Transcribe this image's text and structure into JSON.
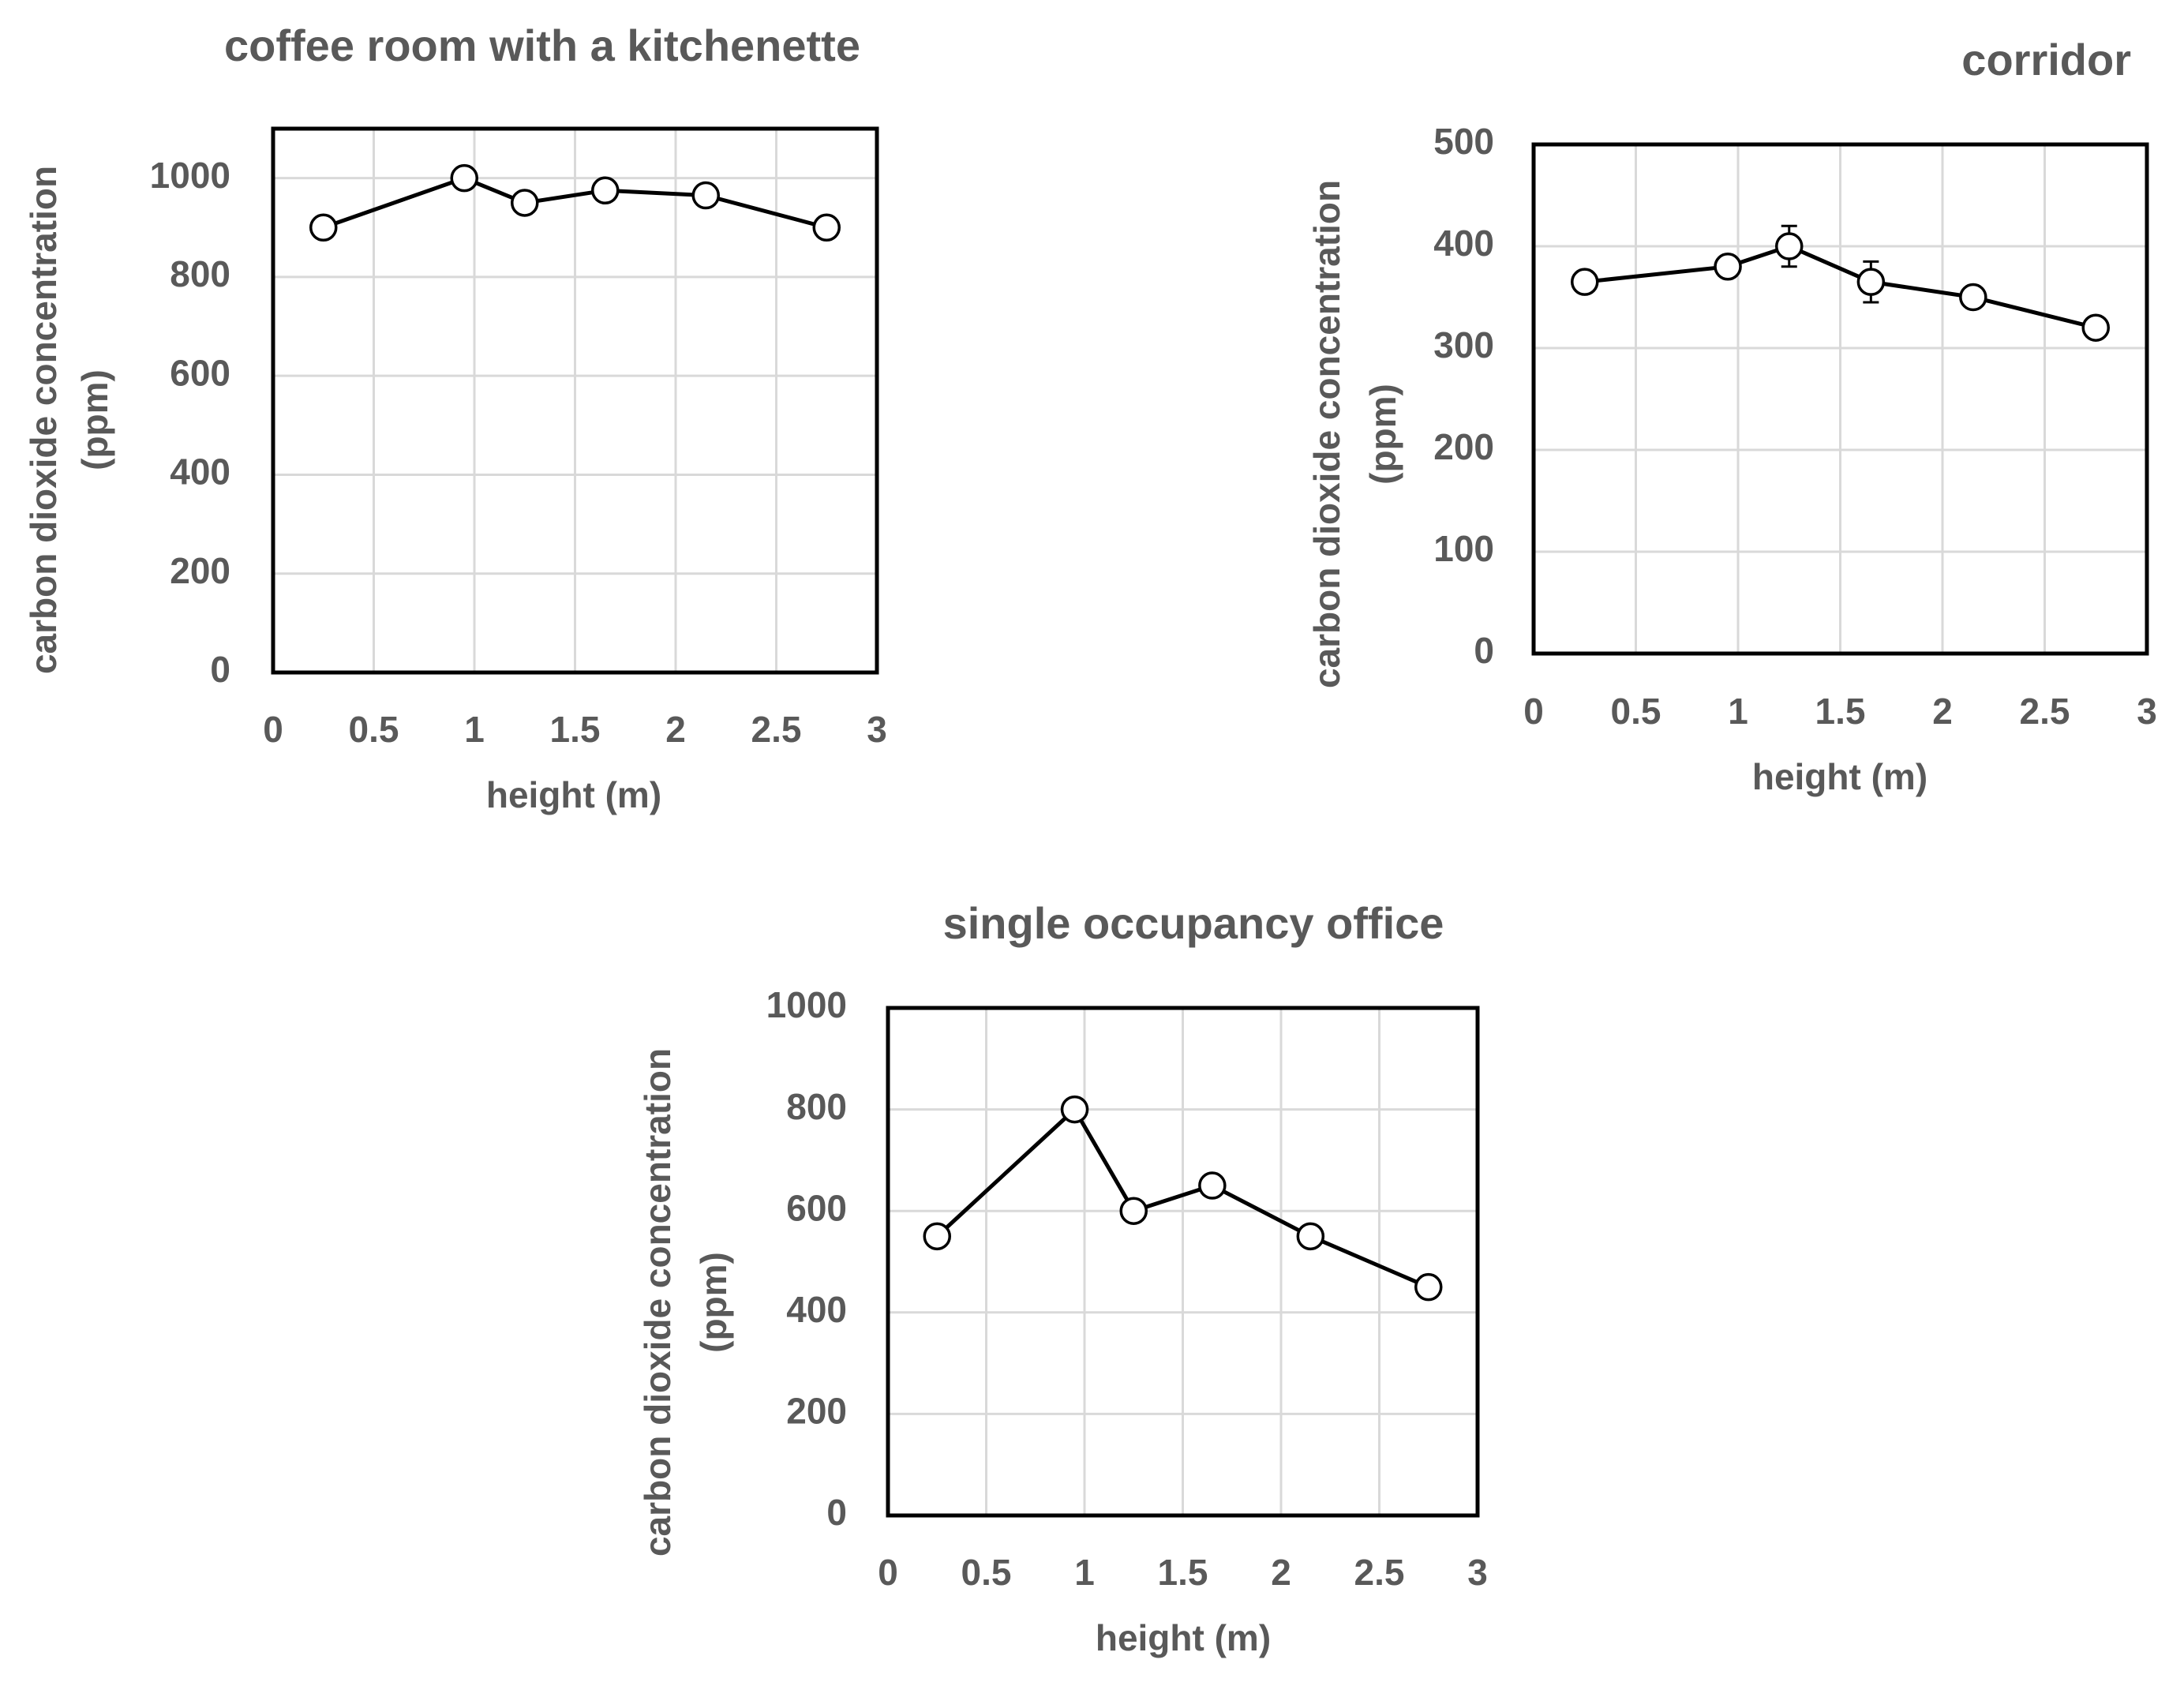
{
  "chart_data": [
    {
      "type": "line",
      "title": "coffee room with a kitchenette",
      "x_label": "height (m)",
      "y_label": [
        "carbon dioxide concentration",
        "(ppm)"
      ],
      "x": [
        0.25,
        0.95,
        1.25,
        1.65,
        2.15,
        2.75
      ],
      "values": [
        900,
        1000,
        950,
        975,
        965,
        900
      ],
      "xlim": [
        0,
        3
      ],
      "ylim": [
        0,
        1100
      ],
      "xticks": [
        0,
        0.5,
        1,
        1.5,
        2,
        2.5,
        3
      ],
      "yticks": [
        0,
        200,
        400,
        600,
        800,
        1000
      ],
      "grid": true,
      "color": "#000000",
      "marker_fill": "#ffffff"
    },
    {
      "type": "line",
      "title": "corridor",
      "x_label": "height (m)",
      "y_label": [
        "carbon dioxide concentration",
        "(ppm)"
      ],
      "x": [
        0.25,
        0.95,
        1.25,
        1.65,
        2.15,
        2.75
      ],
      "values": [
        365,
        380,
        400,
        365,
        350,
        320
      ],
      "errors": [
        null,
        null,
        20,
        20,
        null,
        null
      ],
      "xlim": [
        0,
        3
      ],
      "ylim": [
        0,
        500
      ],
      "xticks": [
        0,
        0.5,
        1,
        1.5,
        2,
        2.5,
        3
      ],
      "yticks": [
        0,
        100,
        200,
        300,
        400,
        500
      ],
      "grid": true,
      "color": "#000000",
      "marker_fill": "#ffffff"
    },
    {
      "type": "line",
      "title": "single occupancy office",
      "x_label": "height (m)",
      "y_label": [
        "carbon dioxide concentration",
        "(ppm)"
      ],
      "x": [
        0.25,
        0.95,
        1.25,
        1.65,
        2.15,
        2.75
      ],
      "values": [
        550,
        800,
        600,
        650,
        550,
        450
      ],
      "xlim": [
        0,
        3
      ],
      "ylim": [
        0,
        1000
      ],
      "xticks": [
        0,
        0.5,
        1,
        1.5,
        2,
        2.5,
        3
      ],
      "yticks": [
        0,
        200,
        400,
        600,
        800,
        1000
      ],
      "grid": true,
      "color": "#000000",
      "marker_fill": "#ffffff"
    }
  ]
}
